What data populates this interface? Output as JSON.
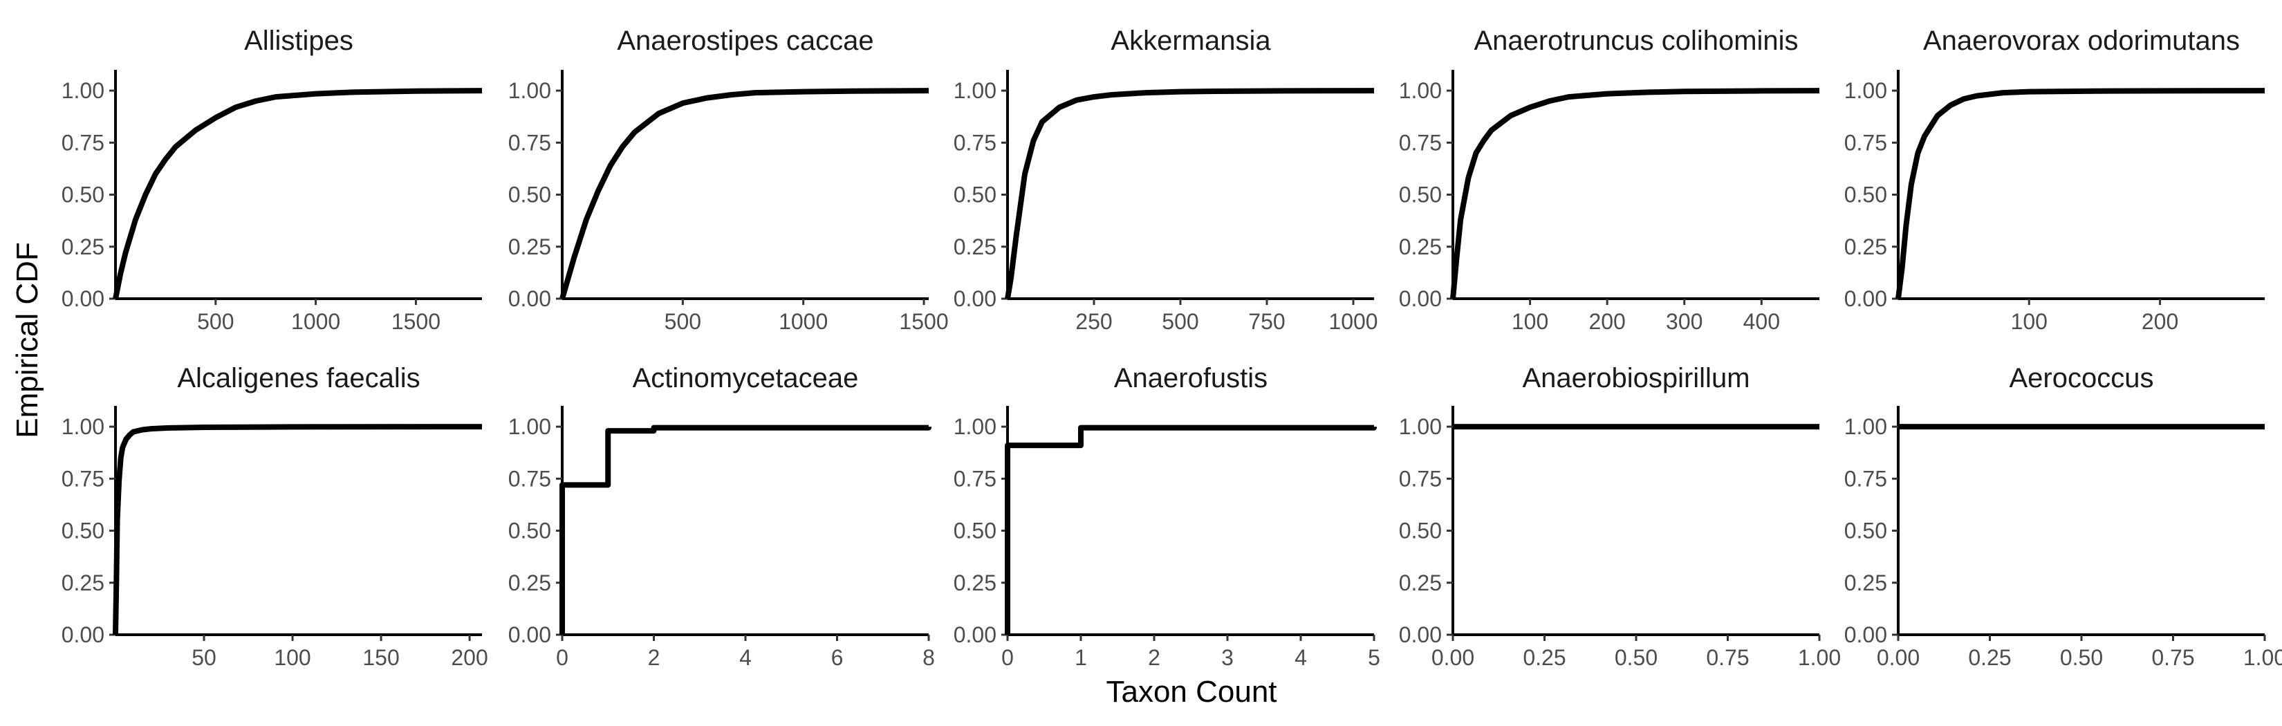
{
  "chart_data": {
    "type": "line",
    "subtype": "ecdf-facets",
    "xlabel": "Taxon Count",
    "ylabel": "Empirical CDF",
    "grid": false,
    "facet_layout": {
      "rows": 2,
      "cols": 5
    },
    "line_color": "#000000",
    "panels": [
      {
        "title": "Allistipes",
        "xlim": [
          0,
          1830
        ],
        "ylim": [
          0,
          1.1
        ],
        "x_ticks": [
          500,
          1000,
          1500
        ],
        "y_ticks": [
          0.0,
          0.25,
          0.5,
          0.75,
          1.0
        ],
        "step": false,
        "x": [
          0,
          25,
          50,
          100,
          150,
          200,
          250,
          300,
          400,
          500,
          600,
          700,
          800,
          1000,
          1200,
          1500,
          1830
        ],
        "y": [
          0.0,
          0.12,
          0.22,
          0.38,
          0.5,
          0.6,
          0.67,
          0.73,
          0.81,
          0.87,
          0.92,
          0.95,
          0.97,
          0.985,
          0.993,
          0.998,
          1.0
        ]
      },
      {
        "title": "Anaerostipes caccae",
        "xlim": [
          0,
          1520
        ],
        "ylim": [
          0,
          1.1
        ],
        "x_ticks": [
          500,
          1000,
          1500
        ],
        "y_ticks": [
          0.0,
          0.25,
          0.5,
          0.75,
          1.0
        ],
        "step": false,
        "x": [
          0,
          25,
          50,
          100,
          150,
          200,
          250,
          300,
          400,
          500,
          600,
          700,
          800,
          1000,
          1200,
          1520
        ],
        "y": [
          0.0,
          0.1,
          0.2,
          0.38,
          0.52,
          0.64,
          0.73,
          0.8,
          0.89,
          0.94,
          0.965,
          0.98,
          0.99,
          0.995,
          0.998,
          1.0
        ]
      },
      {
        "title": "Akkermansia",
        "xlim": [
          0,
          1060
        ],
        "ylim": [
          0,
          1.1
        ],
        "x_ticks": [
          250,
          500,
          750,
          1000
        ],
        "y_ticks": [
          0.0,
          0.25,
          0.5,
          0.75,
          1.0
        ],
        "step": false,
        "x": [
          0,
          10,
          25,
          50,
          75,
          100,
          150,
          200,
          250,
          300,
          400,
          500,
          600,
          800,
          1060
        ],
        "y": [
          0.0,
          0.1,
          0.3,
          0.6,
          0.76,
          0.85,
          0.92,
          0.955,
          0.97,
          0.98,
          0.99,
          0.995,
          0.997,
          0.999,
          1.0
        ]
      },
      {
        "title": "Anaerotruncus colihominis",
        "xlim": [
          0,
          475
        ],
        "ylim": [
          0,
          1.1
        ],
        "x_ticks": [
          100,
          200,
          300,
          400
        ],
        "y_ticks": [
          0.0,
          0.25,
          0.5,
          0.75,
          1.0
        ],
        "step": false,
        "x": [
          0,
          5,
          10,
          20,
          30,
          40,
          50,
          75,
          100,
          125,
          150,
          200,
          250,
          300,
          400,
          475
        ],
        "y": [
          0.0,
          0.2,
          0.38,
          0.58,
          0.7,
          0.76,
          0.81,
          0.88,
          0.92,
          0.95,
          0.97,
          0.985,
          0.992,
          0.996,
          0.999,
          1.0
        ]
      },
      {
        "title": "Anaerovorax odorimutans",
        "xlim": [
          0,
          280
        ],
        "ylim": [
          0,
          1.1
        ],
        "x_ticks": [
          100,
          200
        ],
        "y_ticks": [
          0.0,
          0.25,
          0.5,
          0.75,
          1.0
        ],
        "step": false,
        "x": [
          0,
          3,
          6,
          10,
          15,
          20,
          30,
          40,
          50,
          60,
          80,
          100,
          150,
          200,
          280
        ],
        "y": [
          0.0,
          0.15,
          0.35,
          0.55,
          0.7,
          0.78,
          0.88,
          0.93,
          0.96,
          0.975,
          0.99,
          0.995,
          0.998,
          0.999,
          1.0
        ]
      },
      {
        "title": "Alcaligenes faecalis",
        "xlim": [
          0,
          207
        ],
        "ylim": [
          0,
          1.1
        ],
        "x_ticks": [
          50,
          100,
          150,
          200
        ],
        "y_ticks": [
          0.0,
          0.25,
          0.5,
          0.75,
          1.0
        ],
        "step": false,
        "x": [
          0,
          0.5,
          1,
          2,
          3,
          4,
          6,
          8,
          10,
          15,
          20,
          30,
          50,
          100,
          207
        ],
        "y": [
          0.0,
          0.25,
          0.55,
          0.74,
          0.85,
          0.9,
          0.94,
          0.96,
          0.975,
          0.985,
          0.99,
          0.994,
          0.997,
          0.999,
          1.0
        ]
      },
      {
        "title": "Actinomycetaceae",
        "xlim": [
          0,
          8
        ],
        "ylim": [
          0,
          1.1
        ],
        "x_ticks": [
          0,
          2,
          4,
          6,
          8
        ],
        "y_ticks": [
          0.0,
          0.25,
          0.5,
          0.75,
          1.0
        ],
        "step": true,
        "x": [
          0,
          1,
          2,
          8
        ],
        "y": [
          0.72,
          0.98,
          0.995,
          1.0
        ]
      },
      {
        "title": "Anaerofustis",
        "xlim": [
          0,
          5
        ],
        "ylim": [
          0,
          1.1
        ],
        "x_ticks": [
          0,
          1,
          2,
          3,
          4,
          5
        ],
        "y_ticks": [
          0.0,
          0.25,
          0.5,
          0.75,
          1.0
        ],
        "step": true,
        "x": [
          0,
          1,
          5
        ],
        "y": [
          0.91,
          0.995,
          1.0
        ]
      },
      {
        "title": "Anaerobiospirillum",
        "xlim": [
          0,
          1
        ],
        "ylim": [
          0,
          1.1
        ],
        "x_ticks": [
          0.0,
          0.25,
          0.5,
          0.75,
          1.0
        ],
        "y_ticks": [
          0.0,
          0.25,
          0.5,
          0.75,
          1.0
        ],
        "step": false,
        "x": [
          0,
          1
        ],
        "y": [
          1.0,
          1.0
        ]
      },
      {
        "title": "Aerococcus",
        "xlim": [
          0,
          1
        ],
        "ylim": [
          0,
          1.1
        ],
        "x_ticks": [
          0.0,
          0.25,
          0.5,
          0.75,
          1.0
        ],
        "y_ticks": [
          0.0,
          0.25,
          0.5,
          0.75,
          1.0
        ],
        "step": false,
        "x": [
          0,
          1
        ],
        "y": [
          1.0,
          1.0
        ]
      }
    ]
  }
}
